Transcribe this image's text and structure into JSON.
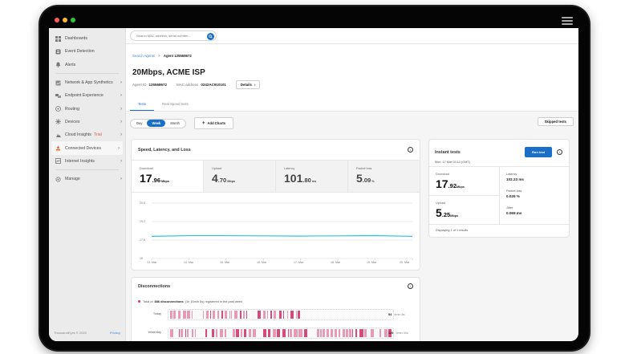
{
  "window": {
    "traffic_lights": [
      "#ff5f57",
      "#febc2e",
      "#28c840"
    ],
    "menu_icon": "hamburger-icon"
  },
  "sidebar": {
    "items": [
      {
        "label": "Dashboards",
        "icon": "dashboard-icon",
        "chevron": false
      },
      {
        "label": "Event Detection",
        "icon": "event-icon",
        "chevron": false
      },
      {
        "label": "Alerts",
        "icon": "bell-icon",
        "chevron": false
      },
      {
        "label": "Network & App Synthetics",
        "icon": "network-icon",
        "chevron": true
      },
      {
        "label": "Endpoint Experience",
        "icon": "endpoint-icon",
        "chevron": true
      },
      {
        "label": "Routing",
        "icon": "routing-icon",
        "chevron": true
      },
      {
        "label": "Devices",
        "icon": "devices-icon",
        "chevron": true
      },
      {
        "label": "Cloud Insights",
        "badge": "Trial",
        "icon": "cloud-icon",
        "chevron": true
      },
      {
        "label": "Connected Devices",
        "icon": "cone-icon",
        "chevron": true,
        "active": true
      },
      {
        "label": "Internet Insights",
        "icon": "internet-icon",
        "chevron": true
      },
      {
        "label": "Manage",
        "icon": "gear-icon",
        "chevron": true
      }
    ],
    "footer": {
      "copyright": "ThousandEyes © 2025",
      "privacy": "Privacy"
    }
  },
  "topbar": {
    "search_placeholder": "Search MAC address, serial number..."
  },
  "header": {
    "breadcrumb": {
      "parent": "Search Agents",
      "separator": ">",
      "current": "Agent 125568672"
    },
    "title": "20Mbps, ACME ISP",
    "agent_id_label": "Agent ID",
    "agent_id": "125568672",
    "mac_label": "MAC address",
    "mac": "0242AC910101",
    "details_button": "Details",
    "tabs": [
      {
        "label": "Tests",
        "active": true
      },
      {
        "label": "Real Speed tests",
        "active": false
      }
    ]
  },
  "controls": {
    "range": [
      {
        "label": "Day",
        "active": false
      },
      {
        "label": "Week",
        "active": true
      },
      {
        "label": "Month",
        "active": false
      }
    ],
    "add_charts": "Add Charts",
    "skipped_tests": "Skipped tests"
  },
  "speed_card": {
    "title": "Speed, Latency, and Loss",
    "kpis": [
      {
        "label": "Download",
        "int": "17",
        "dec": ".96",
        "unit": "Mbps"
      },
      {
        "label": "Upload",
        "int": "4",
        "dec": ".70",
        "unit": "Mbps"
      },
      {
        "label": "Latency",
        "int": "101",
        "dec": ".80",
        "unit": "ms"
      },
      {
        "label": "Packet loss",
        "int": "5",
        "dec": ".09",
        "unit": "%"
      }
    ]
  },
  "chart_data": {
    "type": "line",
    "title": "Speed, Latency, and Loss",
    "xlabel": "",
    "ylabel": "",
    "yticks": [
      "20.8",
      "19.2",
      "17.6",
      "16"
    ],
    "ylim": [
      16,
      20.8
    ],
    "categories": [
      "13. Mar",
      "14. Mar",
      "15. Mar",
      "16. Mar",
      "17. Mar",
      "18. Mar",
      "19. Mar",
      "20. Mar"
    ],
    "series": [
      {
        "name": "Download",
        "color": "#2bc4e0",
        "values": [
          17.92,
          17.98,
          17.98,
          17.96,
          17.94,
          17.96,
          17.98,
          17.92
        ]
      }
    ],
    "grid": true
  },
  "disconnections": {
    "title": "Disconnections",
    "note_prefix": "Total of",
    "note_bold": "886 disconnections",
    "note_suffix": "(1h 16min 5s) registered in the past week",
    "rows": [
      {
        "label": "Today",
        "count": "54",
        "duration": "4min 8s"
      },
      {
        "label": "Yesterday",
        "count": "129",
        "duration": "9min 40s"
      }
    ],
    "bar_color": "#e79ab5",
    "bar_dark_color": "#d44b7c"
  },
  "instant_tests": {
    "title": "Instant tests",
    "date": "Mon, 17 Mar 03:10 (GMT)",
    "run_button": "Run test",
    "download": {
      "label": "Download",
      "int": "17",
      "dec": ".92",
      "unit": "Mbps"
    },
    "upload": {
      "label": "Upload",
      "int": "5",
      "dec": ".25",
      "unit": "Mbps"
    },
    "metrics": [
      {
        "label": "Latency",
        "value": "102.23 ms"
      },
      {
        "label": "Packet loss",
        "value": "0.026 %"
      },
      {
        "label": "Jitter",
        "value": "0.069 ms"
      }
    ],
    "footer": "Displaying 1 of 1 results"
  },
  "colors": {
    "accent": "#1b6fc6",
    "line": "#2bc4e0",
    "trial": "#e05a3a"
  }
}
